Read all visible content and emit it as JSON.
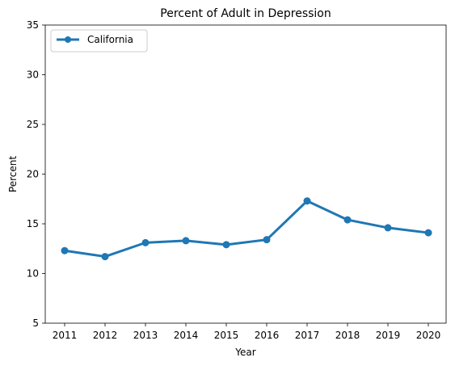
{
  "chart_data": {
    "type": "line",
    "title": "Percent of Adult in Depression",
    "xlabel": "Year",
    "ylabel": "Percent",
    "categories": [
      "2011",
      "2012",
      "2013",
      "2014",
      "2015",
      "2016",
      "2017",
      "2018",
      "2019",
      "2020"
    ],
    "series": [
      {
        "name": "California",
        "values": [
          12.3,
          11.7,
          13.1,
          13.3,
          12.9,
          13.4,
          17.3,
          15.4,
          14.6,
          14.1
        ],
        "color": "#1f77b4"
      }
    ],
    "ylim": [
      5,
      35
    ],
    "yticks": [
      "5",
      "10",
      "15",
      "20",
      "25",
      "30",
      "35"
    ],
    "grid": false,
    "legend_position": "top-left"
  }
}
